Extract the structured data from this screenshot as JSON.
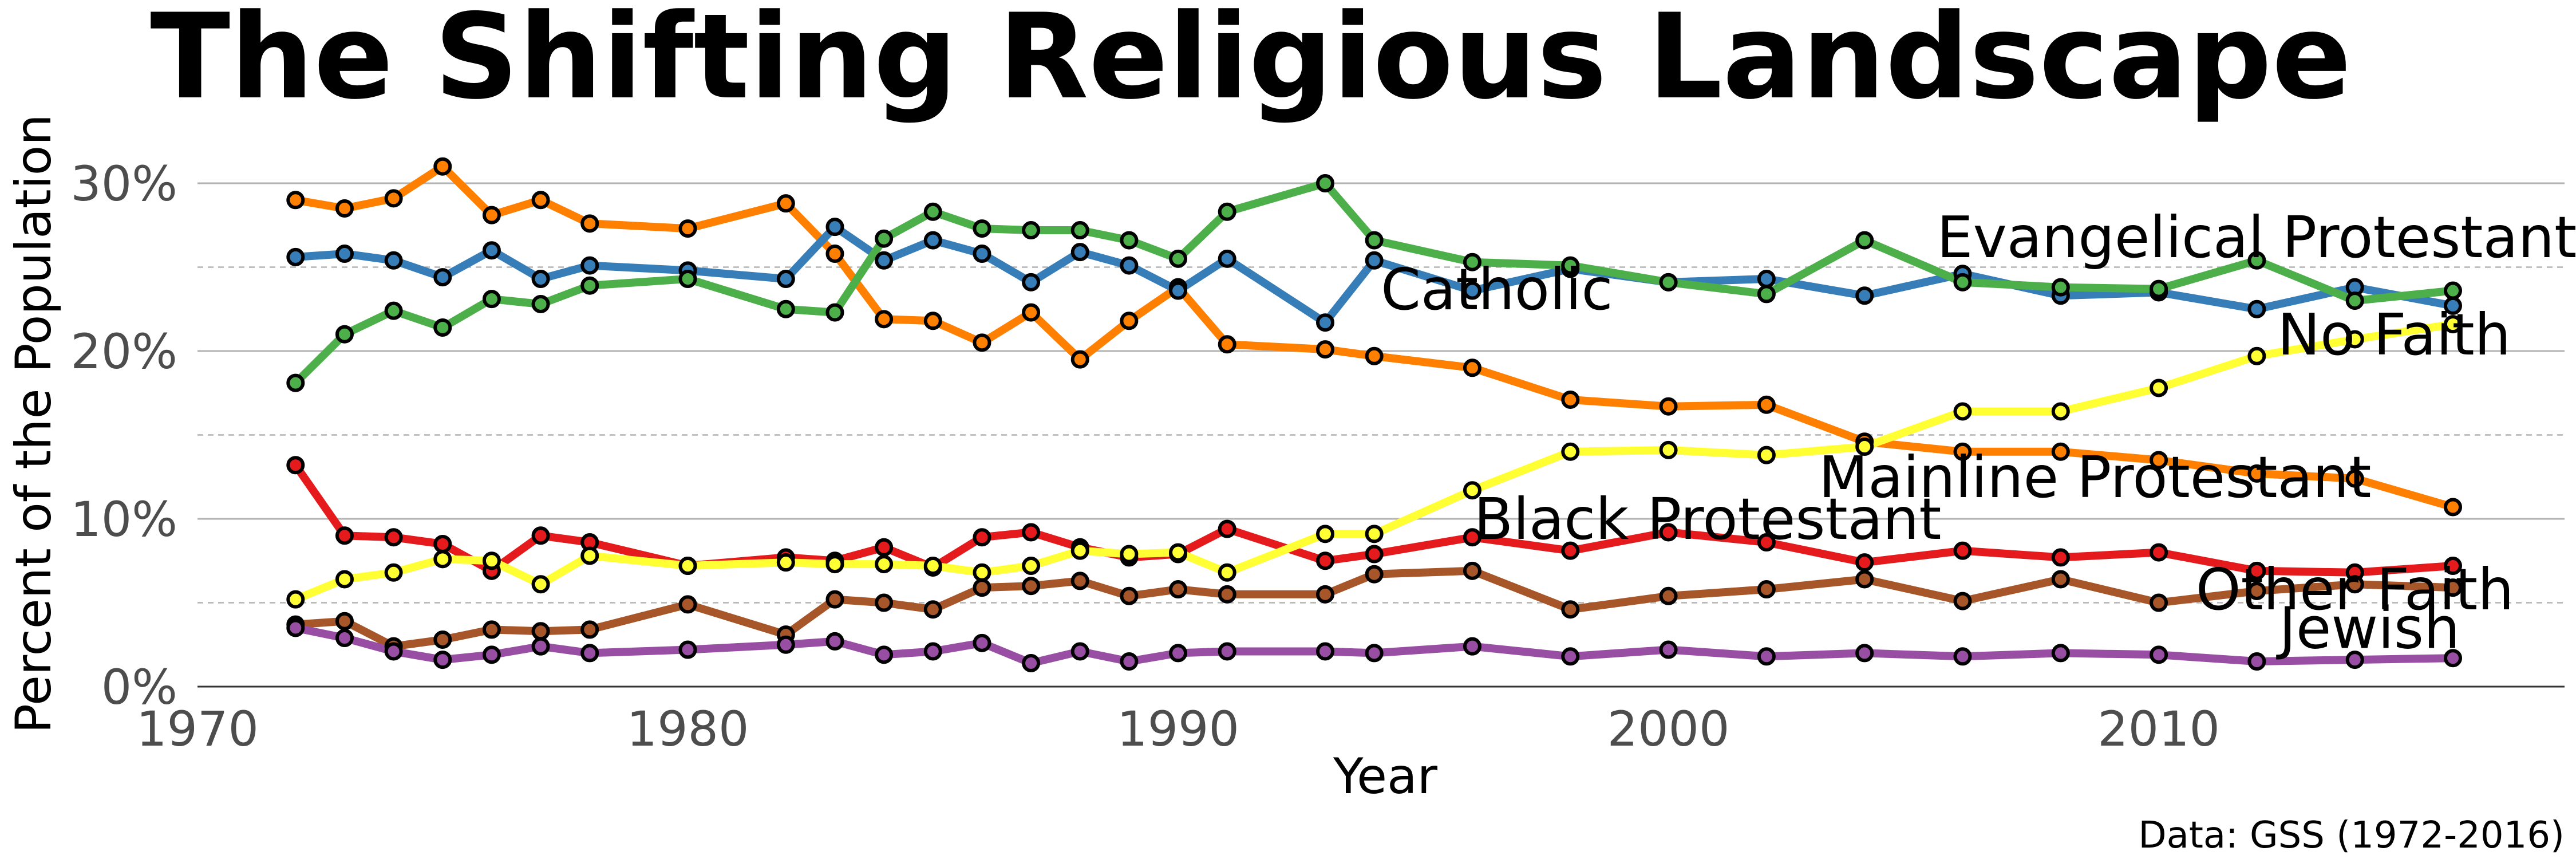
{
  "chart_data": {
    "type": "line",
    "title": "The Shifting Religious Landscape",
    "xlabel": "Year",
    "ylabel": "Percent of the Population",
    "caption": "Data: GSS (1972-2016)",
    "xlim": [
      1970,
      2018
    ],
    "ylim": [
      0,
      31
    ],
    "x_ticks": [
      1970,
      1980,
      1990,
      2000,
      2010
    ],
    "y_ticks": [
      {
        "value": 0,
        "label": "0%"
      },
      {
        "value": 10,
        "label": "10%"
      },
      {
        "value": 20,
        "label": "20%"
      },
      {
        "value": 30,
        "label": "30%"
      }
    ],
    "grid": true,
    "legend": "direct labels on lines",
    "x": [
      1972,
      1973,
      1974,
      1975,
      1976,
      1977,
      1978,
      1980,
      1982,
      1983,
      1984,
      1985,
      1986,
      1987,
      1988,
      1989,
      1990,
      1991,
      1993,
      1994,
      1996,
      1998,
      2000,
      2002,
      2004,
      2006,
      2008,
      2010,
      2012,
      2014,
      2016
    ],
    "series": [
      {
        "name": "Mainline Protestant",
        "color": "#ff7f00",
        "values": [
          29.0,
          28.5,
          29.1,
          31.0,
          28.1,
          29.0,
          27.6,
          27.3,
          28.8,
          25.8,
          21.9,
          21.8,
          20.5,
          22.3,
          19.5,
          21.8,
          23.8,
          20.4,
          20.1,
          19.7,
          19.0,
          17.1,
          16.7,
          16.8,
          14.6,
          14.0,
          14.0,
          13.5,
          12.7,
          12.4,
          10.7
        ]
      },
      {
        "name": "Catholic",
        "color": "#377eb8",
        "values": [
          25.6,
          25.8,
          25.4,
          24.4,
          26.0,
          24.3,
          25.1,
          24.8,
          24.3,
          27.4,
          25.4,
          26.6,
          25.8,
          24.1,
          25.9,
          25.1,
          23.6,
          25.5,
          21.7,
          25.4,
          23.6,
          24.9,
          24.1,
          24.3,
          23.3,
          24.6,
          23.3,
          23.5,
          22.5,
          23.8,
          22.7
        ]
      },
      {
        "name": "Evangelical Protestant",
        "color": "#4daf4a",
        "values": [
          18.1,
          21.0,
          22.4,
          21.4,
          23.1,
          22.8,
          23.9,
          24.3,
          22.5,
          22.3,
          26.7,
          28.3,
          27.3,
          27.2,
          27.2,
          26.6,
          25.5,
          28.3,
          30.0,
          26.6,
          25.3,
          25.1,
          24.1,
          23.4,
          26.6,
          24.1,
          23.8,
          23.7,
          25.4,
          23.0,
          23.6
        ]
      },
      {
        "name": "Black Protestant",
        "color": "#e41a1c",
        "values": [
          13.2,
          9.0,
          8.9,
          8.5,
          6.9,
          9.0,
          8.6,
          7.2,
          7.7,
          7.5,
          8.3,
          7.1,
          8.9,
          9.2,
          8.3,
          7.7,
          7.9,
          9.4,
          7.5,
          7.9,
          8.9,
          8.1,
          9.2,
          8.6,
          7.4,
          8.1,
          7.7,
          8.0,
          6.9,
          6.8,
          7.2
        ]
      },
      {
        "name": "No Faith",
        "color": "#ffff33",
        "values": [
          5.2,
          6.4,
          6.8,
          7.6,
          7.5,
          6.1,
          7.8,
          7.2,
          7.4,
          7.3,
          7.3,
          7.2,
          6.8,
          7.2,
          8.1,
          7.9,
          8.0,
          6.8,
          9.1,
          9.1,
          11.7,
          14.0,
          14.1,
          13.8,
          14.3,
          16.4,
          16.4,
          17.8,
          19.7,
          20.7,
          21.6
        ]
      },
      {
        "name": "Other Faith",
        "color": "#a65628",
        "values": [
          3.7,
          3.9,
          2.4,
          2.8,
          3.4,
          3.3,
          3.4,
          4.9,
          3.1,
          5.2,
          5.0,
          4.6,
          5.9,
          6.0,
          6.3,
          5.4,
          5.8,
          5.5,
          5.5,
          6.7,
          6.9,
          4.6,
          5.4,
          5.8,
          6.4,
          5.1,
          6.4,
          5.0,
          5.7,
          6.1,
          5.9
        ]
      },
      {
        "name": "Jewish",
        "color": "#984ea3",
        "values": [
          3.5,
          2.9,
          2.1,
          1.6,
          1.9,
          2.4,
          2.0,
          2.2,
          2.5,
          2.7,
          1.9,
          2.1,
          2.6,
          1.4,
          2.1,
          1.5,
          2.0,
          2.1,
          2.1,
          2.0,
          2.4,
          1.8,
          2.2,
          1.8,
          2.0,
          1.8,
          2.0,
          1.9,
          1.5,
          1.6,
          1.7
        ]
      }
    ],
    "series_labels": [
      {
        "name": "Evangelical Protestant",
        "x": 2012,
        "y": 25.6
      },
      {
        "name": "Catholic",
        "x": 1996.5,
        "y": 22.5
      },
      {
        "name": "No Faith",
        "x": 2014.8,
        "y": 19.8
      },
      {
        "name": "Mainline Protestant",
        "x": 2008.7,
        "y": 11.3
      },
      {
        "name": "Black Protestant",
        "x": 2000.8,
        "y": 8.8
      },
      {
        "name": "Other Faith",
        "x": 2014,
        "y": 4.6
      },
      {
        "name": "Jewish",
        "x": 2014.3,
        "y": 2.3
      }
    ]
  }
}
